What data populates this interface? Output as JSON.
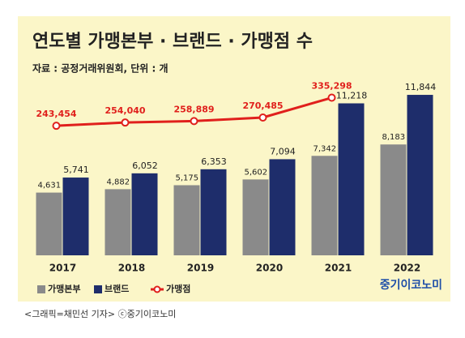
{
  "chart_data": {
    "type": "bar",
    "title": "연도별 가맹본부 · 브랜드 · 가맹점 수",
    "subtitle": "자료 : 공정거래위원회, 단위 : 개",
    "categories": [
      "2017",
      "2018",
      "2019",
      "2020",
      "2021",
      "2022"
    ],
    "ylim": [
      0,
      14000
    ],
    "y2lim": [
      -180000,
      440000
    ],
    "series": [
      {
        "name": "가맹본부",
        "color": "#8a8a8a",
        "values": [
          4631,
          4882,
          5175,
          5602,
          7342,
          8183
        ],
        "value_labels": [
          "4,631",
          "4,882",
          "5,175",
          "5,602",
          "7,342",
          "8,183"
        ]
      },
      {
        "name": "브랜드",
        "color": "#1e2d6b",
        "values": [
          5741,
          6052,
          6353,
          7094,
          11218,
          11844
        ],
        "value_labels": [
          "5,741",
          "6,052",
          "6,353",
          "7,094",
          "11,218",
          "11,844"
        ]
      },
      {
        "name": "가맹점",
        "type": "line",
        "axis": "y2",
        "color": "#e0201c",
        "values": [
          243454,
          254040,
          258889,
          270485,
          335298,
          null
        ],
        "value_labels": [
          "243,454",
          "254,040",
          "258,889",
          "270,485",
          "335,298",
          null
        ]
      }
    ],
    "watermark": "중기이코노미",
    "caption": "<그래픽=채민선 기자>   ⓒ중기이코노미"
  }
}
